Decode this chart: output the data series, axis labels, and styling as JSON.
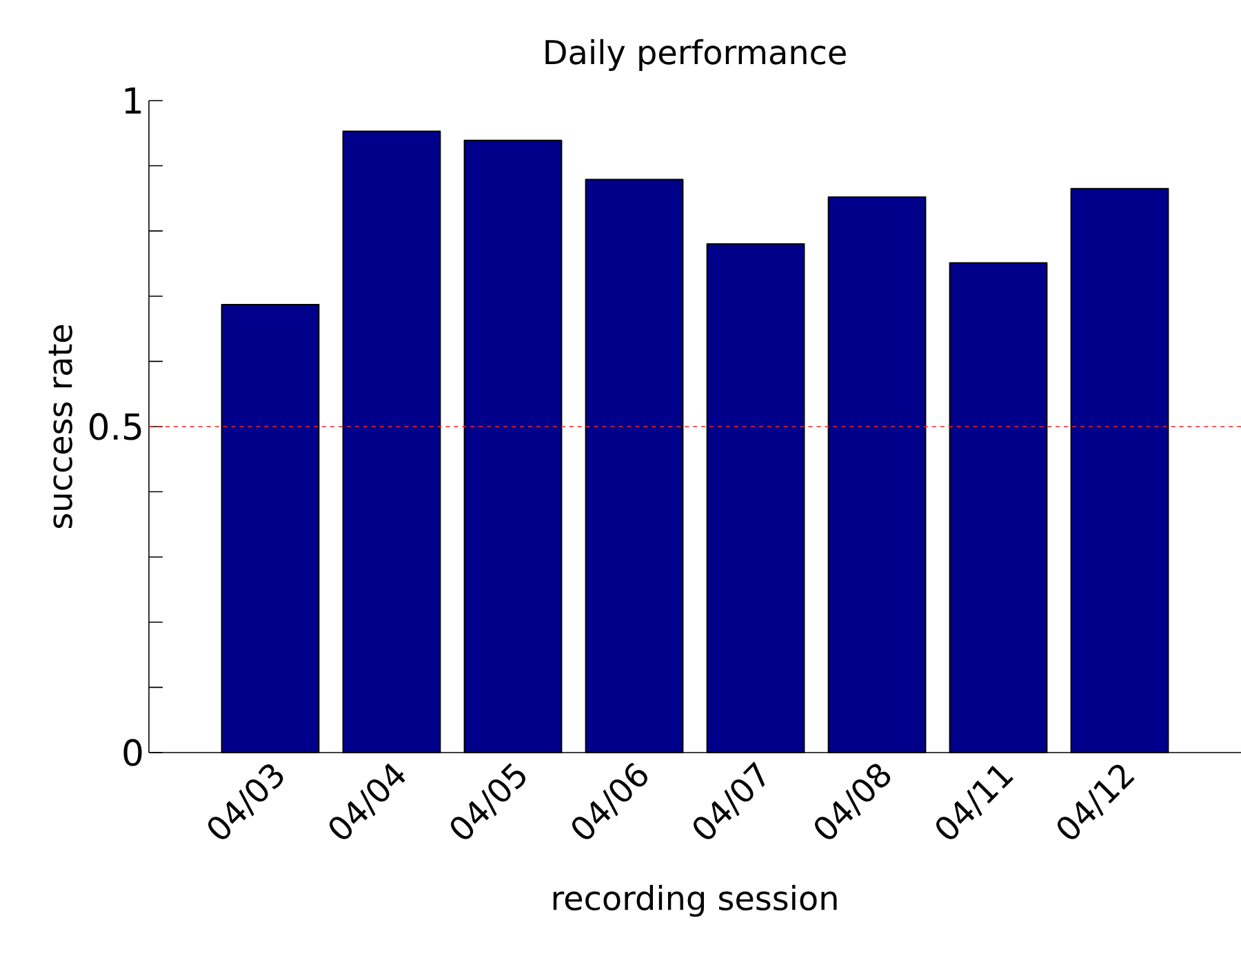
{
  "chart_data": {
    "type": "bar",
    "title": "Daily performance",
    "xlabel": "recording session",
    "ylabel": "success rate",
    "categories": [
      "04/03",
      "04/04",
      "04/05",
      "04/06",
      "04/07",
      "04/08",
      "04/11",
      "04/12"
    ],
    "values": [
      0.687,
      0.953,
      0.939,
      0.879,
      0.78,
      0.852,
      0.751,
      0.865
    ],
    "color": "#00008b",
    "ylim": [
      0,
      1
    ],
    "yticks": [
      0,
      {
        "value": 0.1,
        "label": null
      },
      {
        "value": 0.2,
        "label": null
      },
      {
        "value": 0.3,
        "label": null
      },
      {
        "value": 0.4,
        "label": null
      },
      0.5,
      {
        "value": 0.6,
        "label": null
      },
      {
        "value": 0.7,
        "label": null
      },
      {
        "value": 0.8,
        "label": null
      },
      {
        "value": 0.9,
        "label": null
      },
      1
    ],
    "ref_lines": [
      {
        "axis": "y",
        "value": 0.5,
        "color": "#ff2020",
        "line_style": "dashed"
      }
    ],
    "grid": false
  }
}
